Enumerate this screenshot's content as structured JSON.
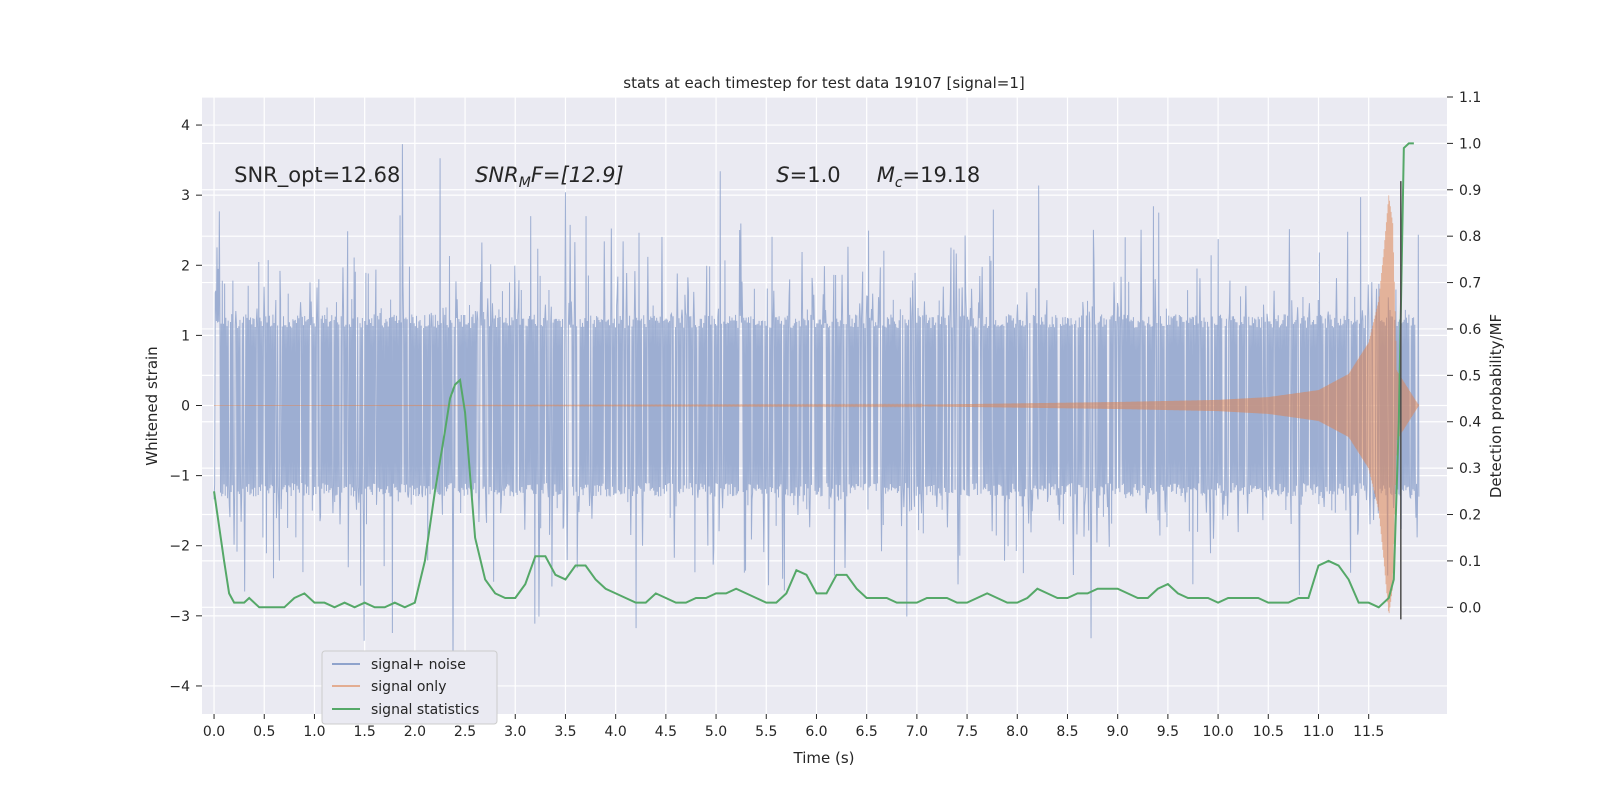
{
  "chart_data": {
    "type": "line",
    "title": "stats at each timestep for test data 19107 [signal=1]",
    "xlabel": "Time (s)",
    "ylabel": "Whitened strain",
    "y2label": "Detection probability/MF",
    "xlim": [
      -0.12,
      12.28
    ],
    "ylim": [
      -4.4,
      4.4
    ],
    "y2lim": [
      -0.23,
      1.1
    ],
    "x_ticks": [
      0.0,
      0.5,
      1.0,
      1.5,
      2.0,
      2.5,
      3.0,
      3.5,
      4.0,
      4.5,
      5.0,
      5.5,
      6.0,
      6.5,
      7.0,
      7.5,
      8.0,
      8.5,
      9.0,
      9.5,
      10.0,
      10.5,
      11.0,
      11.5
    ],
    "x_tick_labels": [
      "0.0",
      "0.5",
      "1.0",
      "1.5",
      "2.0",
      "2.5",
      "3.0",
      "3.5",
      "4.0",
      "4.5",
      "5.0",
      "5.5",
      "6.0",
      "6.5",
      "7.0",
      "7.5",
      "8.0",
      "8.5",
      "9.0",
      "9.5",
      "10.0",
      "10.5",
      "11.0",
      "11.5"
    ],
    "y_ticks": [
      -4,
      -3,
      -2,
      -1,
      0,
      1,
      2,
      3,
      4
    ],
    "y_tick_labels": [
      "−4",
      "−3",
      "−2",
      "−1",
      "0",
      "1",
      "2",
      "3",
      "4"
    ],
    "y2_ticks": [
      0.0,
      0.1,
      0.2,
      0.3,
      0.4,
      0.5,
      0.6,
      0.7,
      0.8,
      0.9,
      1.0,
      1.1
    ],
    "y2_tick_labels": [
      "0.0",
      "0.1",
      "0.2",
      "0.3",
      "0.4",
      "0.5",
      "0.6",
      "0.7",
      "0.8",
      "0.9",
      "1.0",
      "1.1"
    ],
    "grid": true,
    "legend_position": "lower-left",
    "annotations": [
      {
        "id": "snr-opt",
        "x": 0.2,
        "y": 3.3,
        "text": "SNR_opt=12.68"
      },
      {
        "id": "snr-mf",
        "x": 2.6,
        "y": 3.3,
        "text": "SNR",
        "sub": "M",
        "tail": "F=[12.9]",
        "italic": true
      },
      {
        "id": "s-val",
        "x": 5.6,
        "y": 3.3,
        "text": "S",
        "tail": "=1.0",
        "italic": true
      },
      {
        "id": "mc-val",
        "x": 6.6,
        "y": 3.3,
        "text": "M",
        "sub": "c",
        "tail": "=19.18",
        "italic": true
      }
    ],
    "vertical_marker": {
      "x": 11.82,
      "y_from": -3.05,
      "y_to": 3.2,
      "color": "#4d4d4d"
    },
    "series": [
      {
        "name": "signal+ noise",
        "axis": "left",
        "color": "#8fa3cc",
        "time_range": [
          0.0,
          12.0
        ],
        "sample_count": 2048,
        "envelope_upper": 1.3,
        "envelope_lower": -1.3,
        "spike_max": 4.1,
        "spike_min": -3.9
      },
      {
        "name": "signal only",
        "axis": "left",
        "color": "#dd8452",
        "time_range": [
          0.0,
          12.0
        ],
        "amplitude": [
          [
            0.0,
            0.0
          ],
          [
            7.0,
            0.01
          ],
          [
            8.0,
            0.03
          ],
          [
            9.0,
            0.05
          ],
          [
            10.0,
            0.08
          ],
          [
            10.5,
            0.12
          ],
          [
            11.0,
            0.22
          ],
          [
            11.3,
            0.45
          ],
          [
            11.5,
            0.9
          ],
          [
            11.6,
            1.5
          ],
          [
            11.65,
            2.2
          ],
          [
            11.7,
            3.0
          ],
          [
            11.74,
            2.6
          ],
          [
            11.78,
            0.5
          ],
          [
            12.0,
            0.0
          ]
        ]
      },
      {
        "name": "signal statistics",
        "axis": "right",
        "color": "#55a868",
        "x": [
          0.0,
          0.1,
          0.15,
          0.2,
          0.3,
          0.35,
          0.45,
          0.5,
          0.6,
          0.7,
          0.8,
          0.9,
          1.0,
          1.1,
          1.2,
          1.3,
          1.4,
          1.5,
          1.6,
          1.7,
          1.8,
          1.9,
          2.0,
          2.1,
          2.2,
          2.3,
          2.35,
          2.4,
          2.45,
          2.5,
          2.6,
          2.7,
          2.8,
          2.9,
          3.0,
          3.1,
          3.2,
          3.3,
          3.4,
          3.5,
          3.6,
          3.7,
          3.8,
          3.9,
          4.0,
          4.1,
          4.2,
          4.3,
          4.4,
          4.5,
          4.6,
          4.7,
          4.8,
          4.9,
          5.0,
          5.1,
          5.2,
          5.3,
          5.4,
          5.5,
          5.6,
          5.7,
          5.8,
          5.9,
          6.0,
          6.1,
          6.2,
          6.3,
          6.4,
          6.5,
          6.6,
          6.7,
          6.8,
          6.9,
          7.0,
          7.1,
          7.2,
          7.3,
          7.4,
          7.5,
          7.6,
          7.7,
          7.8,
          7.9,
          8.0,
          8.1,
          8.2,
          8.3,
          8.4,
          8.5,
          8.6,
          8.7,
          8.8,
          8.9,
          9.0,
          9.1,
          9.2,
          9.3,
          9.4,
          9.5,
          9.6,
          9.7,
          9.8,
          9.9,
          10.0,
          10.1,
          10.2,
          10.3,
          10.4,
          10.5,
          10.6,
          10.7,
          10.8,
          10.9,
          11.0,
          11.1,
          11.2,
          11.3,
          11.4,
          11.5,
          11.6,
          11.7,
          11.75,
          11.8,
          11.85,
          11.9,
          11.95
        ],
        "values": [
          0.25,
          0.1,
          0.03,
          0.01,
          0.01,
          0.02,
          0.0,
          0.0,
          0.0,
          0.0,
          0.02,
          0.03,
          0.01,
          0.01,
          0.0,
          0.01,
          0.0,
          0.01,
          0.0,
          0.0,
          0.01,
          0.0,
          0.01,
          0.1,
          0.25,
          0.38,
          0.45,
          0.48,
          0.49,
          0.42,
          0.15,
          0.06,
          0.03,
          0.02,
          0.02,
          0.05,
          0.11,
          0.11,
          0.07,
          0.06,
          0.09,
          0.09,
          0.06,
          0.04,
          0.03,
          0.02,
          0.01,
          0.01,
          0.03,
          0.02,
          0.01,
          0.01,
          0.02,
          0.02,
          0.03,
          0.03,
          0.04,
          0.03,
          0.02,
          0.01,
          0.01,
          0.03,
          0.08,
          0.07,
          0.03,
          0.03,
          0.07,
          0.07,
          0.04,
          0.02,
          0.02,
          0.02,
          0.01,
          0.01,
          0.01,
          0.02,
          0.02,
          0.02,
          0.01,
          0.01,
          0.02,
          0.03,
          0.02,
          0.01,
          0.01,
          0.02,
          0.04,
          0.03,
          0.02,
          0.02,
          0.03,
          0.03,
          0.04,
          0.04,
          0.04,
          0.03,
          0.02,
          0.02,
          0.04,
          0.05,
          0.03,
          0.02,
          0.02,
          0.02,
          0.01,
          0.02,
          0.02,
          0.02,
          0.02,
          0.01,
          0.01,
          0.01,
          0.02,
          0.02,
          0.09,
          0.1,
          0.09,
          0.06,
          0.01,
          0.01,
          0.0,
          0.02,
          0.06,
          0.4,
          0.99,
          1.0,
          1.0
        ]
      }
    ]
  }
}
